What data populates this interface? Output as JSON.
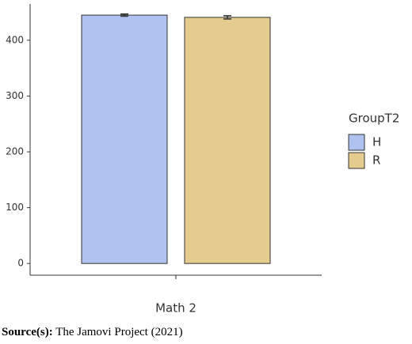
{
  "chart_data": {
    "type": "bar",
    "categories": [
      "Math 2"
    ],
    "legend_title": "GroupT2",
    "series": [
      {
        "name": "H",
        "color": "#b0c2f0",
        "values": [
          445
        ],
        "errors": [
          2
        ]
      },
      {
        "name": "R",
        "color": "#e6cb8e",
        "values": [
          441
        ],
        "errors": [
          3
        ]
      }
    ],
    "ylim": [
      -21,
      465
    ],
    "yticks": [
      0,
      100,
      200,
      300,
      400
    ],
    "grid": false
  },
  "source": {
    "label": "Source(s):",
    "text": "The Jamovi Project (2021)"
  }
}
